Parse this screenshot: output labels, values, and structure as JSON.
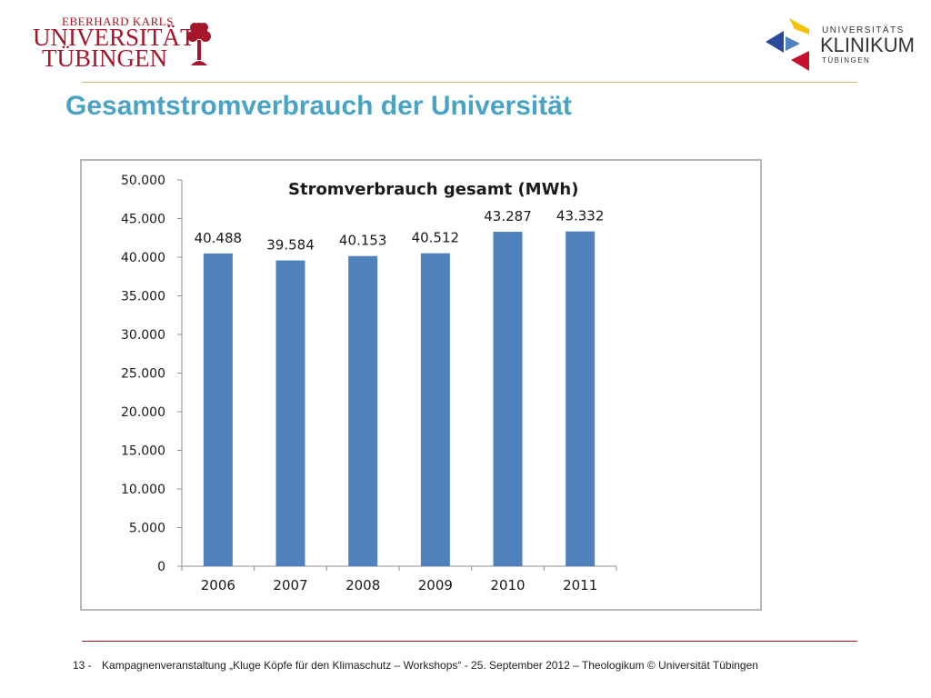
{
  "header": {
    "university_logo": {
      "line1": "EBERHARD KARLS",
      "line2": "UNIVERSITÄT",
      "line3": "TÜBINGEN"
    },
    "klinikum_logo": {
      "line1": "UNIVERSITÄTS",
      "line2": "KLINIKUM",
      "line3": "TÜBINGEN"
    }
  },
  "title": "Gesamtstromverbrauch der Universität",
  "chart_data": {
    "type": "bar",
    "title": "Stromverbrauch  gesamt (MWh)",
    "categories": [
      "2006",
      "2007",
      "2008",
      "2009",
      "2010",
      "2011"
    ],
    "values": [
      40488,
      39584,
      40153,
      40512,
      43287,
      43332
    ],
    "data_labels": [
      "40.488",
      "39.584",
      "40.153",
      "40.512",
      "43.287",
      "43.332"
    ],
    "ylim": [
      0,
      50000
    ],
    "yticks": [
      0,
      5000,
      10000,
      15000,
      20000,
      25000,
      30000,
      35000,
      40000,
      45000,
      50000
    ],
    "ytick_labels": [
      "0",
      "5.000",
      "10.000",
      "15.000",
      "20.000",
      "25.000",
      "30.000",
      "35.000",
      "40.000",
      "45.000",
      "50.000"
    ],
    "bar_color": "#4f81bd",
    "grid": false,
    "legend": false
  },
  "footer": {
    "page_number": "13 -",
    "text": "Kampagnenveranstaltung „Kluge Köpfe für den Klimaschutz – Workshops“ - 25. September 2012 – Theologikum © Universität Tübingen"
  },
  "colors": {
    "title": "#4aa3c4",
    "university_red": "#a5162a",
    "rule_gold": "#c9bb7e"
  }
}
